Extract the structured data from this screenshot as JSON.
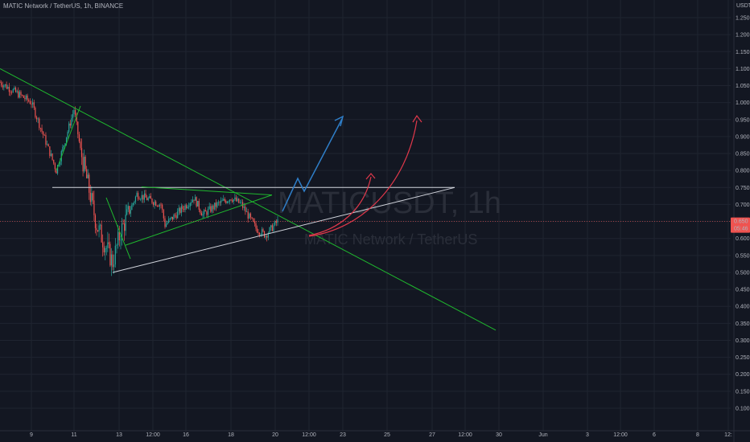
{
  "header": {
    "symbol_line": "MATIC Network / TetherUS, 1h, BINANCE"
  },
  "watermark": {
    "ticker": "MATICUSDT, 1h",
    "name": "MATIC Network / TetherUS"
  },
  "price_axis": {
    "currency": "USDT",
    "ticks": [
      "1.250",
      "1.200",
      "1.150",
      "1.100",
      "1.050",
      "1.000",
      "0.950",
      "0.900",
      "0.850",
      "0.800",
      "0.750",
      "0.700",
      "0.650",
      "0.600",
      "0.550",
      "0.500",
      "0.450",
      "0.400",
      "0.350",
      "0.300",
      "0.250",
      "0.200",
      "0.150",
      "0.100"
    ],
    "last_price": "0.650",
    "countdown": "05:46"
  },
  "time_axis": {
    "ticks": [
      "9",
      "11",
      "13",
      "12:00",
      "16",
      "18",
      "20",
      "12:00",
      "23",
      "25",
      "27",
      "12:00",
      "30",
      "Jun",
      "3",
      "12:00",
      "6",
      "8",
      "12:"
    ]
  },
  "colors": {
    "background": "#131722",
    "up": "#26a69a",
    "down": "#ef5350",
    "green_line": "#1fb82e",
    "white_line": "#d1d4dc",
    "blue_arrow": "#2f7ec8",
    "red_arrow": "#e0384b",
    "last_price_line": "#ef5350"
  },
  "chart_data": {
    "type": "candlestick",
    "symbol": "MATICUSDT",
    "interval": "1h",
    "exchange": "BINANCE",
    "ylim": [
      0.1,
      1.25
    ],
    "price_path": [
      [
        "8 May",
        1.06
      ],
      [
        "9 May",
        1.0
      ],
      [
        "10 May",
        0.8
      ],
      [
        "10 May 12:00",
        0.98
      ],
      [
        "11 May",
        0.86
      ],
      [
        "12 May",
        0.64
      ],
      [
        "12 May 12:00",
        0.53
      ],
      [
        "13 May",
        0.62
      ],
      [
        "13 May 12:00",
        0.73
      ],
      [
        "14 May",
        0.7
      ],
      [
        "15 May",
        0.64
      ],
      [
        "16 May",
        0.72
      ],
      [
        "16 May 12:00",
        0.67
      ],
      [
        "17 May",
        0.7
      ],
      [
        "18 May",
        0.72
      ],
      [
        "18 May 12:00",
        0.7
      ],
      [
        "19 May",
        0.63
      ],
      [
        "19 May 12:00",
        0.61
      ],
      [
        "20 May",
        0.65
      ]
    ],
    "drawings": [
      {
        "name": "descending trendline",
        "color": "green",
        "from": [
          "8 May",
          1.1
        ],
        "to": [
          "29 May 18:00",
          0.33
        ]
      },
      {
        "name": "horizontal resistance",
        "color": "white",
        "price": 0.75,
        "from": "10 May",
        "to": "28 May"
      },
      {
        "name": "ascending support",
        "color": "white",
        "from": [
          "12 May 18:00",
          0.5
        ],
        "to": [
          "28 May",
          0.75
        ]
      },
      {
        "name": "rising wedge support",
        "color": "green",
        "from": [
          "13 May",
          0.58
        ],
        "to": [
          "20 May",
          0.73
        ]
      },
      {
        "name": "wedge top",
        "color": "green",
        "from": [
          "13 May 18:00",
          0.75
        ],
        "to": [
          "20 May",
          0.73
        ]
      },
      {
        "name": "projected path",
        "color": "blue",
        "points": [
          [
            "20 May 12:00",
            0.7
          ],
          [
            "21 May 06:00",
            0.8
          ],
          [
            "21 May 12:00",
            0.76
          ],
          [
            "23 May",
            0.97
          ]
        ]
      },
      {
        "name": "projected curve",
        "color": "red",
        "target": [
          "23 May 18:00",
          0.81
        ]
      },
      {
        "name": "projected curve",
        "color": "red",
        "target": [
          "26 May",
          0.97
        ]
      }
    ]
  }
}
